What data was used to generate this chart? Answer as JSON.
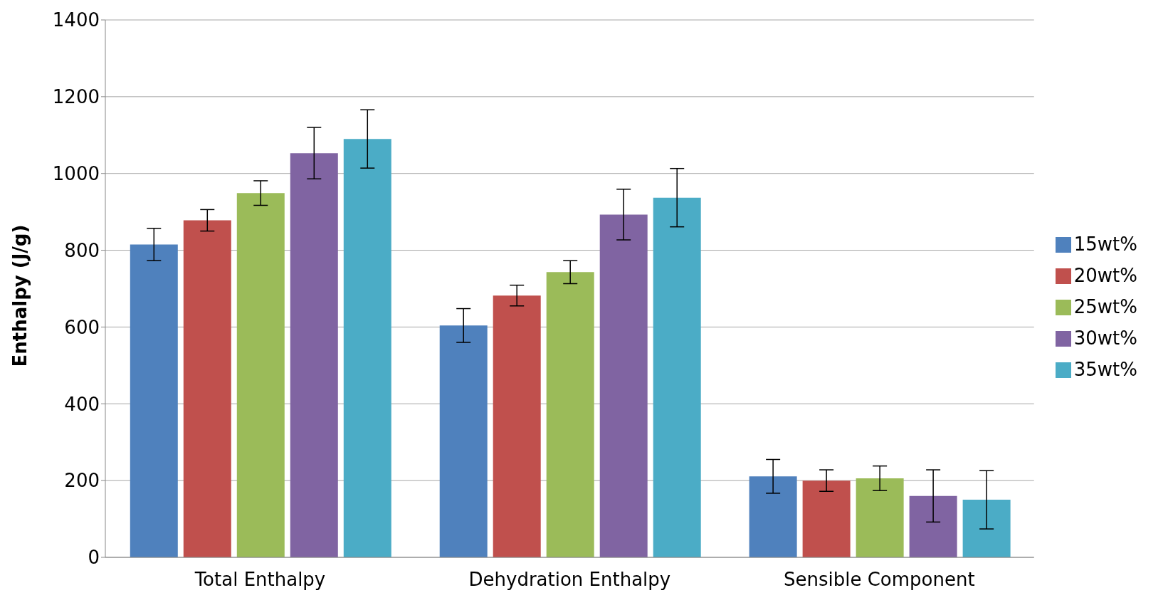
{
  "chart_data": {
    "type": "bar",
    "ylabel": "Enthalpy (J/g)",
    "categories": [
      "Total Enthalpy",
      "Dehydration Enthalpy",
      "Sensible Component"
    ],
    "series": [
      {
        "name": "15wt%",
        "color": "#4f81bd",
        "values": [
          815,
          604,
          211
        ],
        "errors": [
          42,
          44,
          44
        ]
      },
      {
        "name": "20wt%",
        "color": "#c0504d",
        "values": [
          878,
          682,
          200
        ],
        "errors": [
          28,
          27,
          28
        ]
      },
      {
        "name": "25wt%",
        "color": "#9bbb59",
        "values": [
          949,
          743,
          206
        ],
        "errors": [
          32,
          30,
          32
        ]
      },
      {
        "name": "30wt%",
        "color": "#8064a2",
        "values": [
          1053,
          893,
          160
        ],
        "errors": [
          67,
          66,
          68
        ]
      },
      {
        "name": "35wt%",
        "color": "#4bacc6",
        "values": [
          1090,
          937,
          150
        ],
        "errors": [
          76,
          76,
          76
        ]
      }
    ],
    "ylim": [
      0,
      1400
    ],
    "yticks": [
      0,
      200,
      400,
      600,
      800,
      1000,
      1200,
      1400
    ],
    "grid": "y",
    "legend": "right"
  }
}
